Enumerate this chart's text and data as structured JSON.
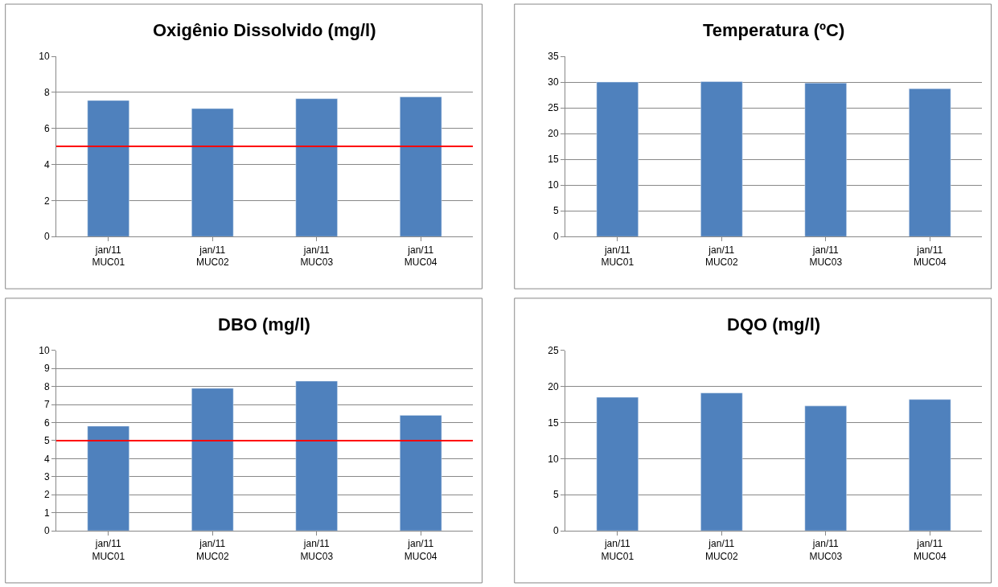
{
  "chart_data": [
    {
      "type": "bar",
      "title": "Oxigênio Dissolvido (mg/l)",
      "categories": [
        "jan/11\nMUC01",
        "jan/11\nMUC02",
        "jan/11\nMUC03",
        "jan/11\nMUC04"
      ],
      "values": [
        7.55,
        7.1,
        7.65,
        7.75
      ],
      "color": "#4f81bd",
      "ylim": [
        0,
        10
      ],
      "yticks": [
        0,
        2,
        4,
        6,
        8,
        10
      ],
      "grid": "y",
      "ref_lines": [
        {
          "axis": "y",
          "value": 5,
          "color": "#ff0000"
        }
      ]
    },
    {
      "type": "bar",
      "title": "Temperatura (ºC)",
      "categories": [
        "jan/11\nMUC01",
        "jan/11\nMUC02",
        "jan/11\nMUC03",
        "jan/11\nMUC04"
      ],
      "values": [
        30,
        30.1,
        29.8,
        28.7
      ],
      "color": "#4f81bd",
      "ylim": [
        0,
        35
      ],
      "yticks": [
        0,
        5,
        10,
        15,
        20,
        25,
        30,
        35
      ],
      "grid": "y"
    },
    {
      "type": "bar",
      "title": "DBO (mg/l)",
      "categories": [
        "jan/11\nMUC01",
        "jan/11\nMUC02",
        "jan/11\nMUC03",
        "jan/11\nMUC04"
      ],
      "values": [
        5.8,
        7.9,
        8.3,
        6.4
      ],
      "color": "#4f81bd",
      "ylim": [
        0,
        10
      ],
      "yticks": [
        0,
        1,
        2,
        3,
        4,
        5,
        6,
        7,
        8,
        9,
        10
      ],
      "grid": "y",
      "ref_lines": [
        {
          "axis": "y",
          "value": 5,
          "color": "#ff0000"
        }
      ]
    },
    {
      "type": "bar",
      "title": "DQO (mg/l)",
      "categories": [
        "jan/11\nMUC01",
        "jan/11\nMUC02",
        "jan/11\nMUC03",
        "jan/11\nMUC04"
      ],
      "values": [
        18.5,
        19.1,
        17.3,
        18.2
      ],
      "color": "#4f81bd",
      "ylim": [
        0,
        25
      ],
      "yticks": [
        0,
        5,
        10,
        15,
        20,
        25
      ],
      "grid": "y"
    }
  ]
}
